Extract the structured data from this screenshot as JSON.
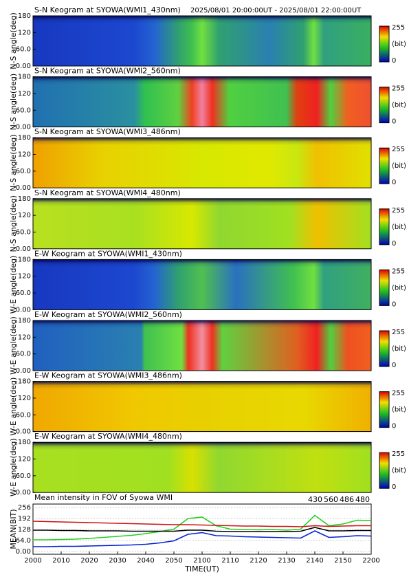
{
  "header": {
    "time_range": "2025/08/01 20:00:00UT - 2025/08/01 22:00:00UT"
  },
  "keograms": [
    {
      "title": "S-N Keogram at SYOWA(WMI1_430nm)",
      "y_label": "N-S angle(deg)"
    },
    {
      "title": "S-N Keogram at SYOWA(WMI2_560nm)",
      "y_label": "N-S angle(deg)"
    },
    {
      "title": "S-N Keogram at SYOWA(WMI3_486nm)",
      "y_label": "N-S angle(deg)"
    },
    {
      "title": "S-N Keogram at SYOWA(WMI4_480nm)",
      "y_label": "N-S angle(deg)"
    },
    {
      "title": "E-W Keogram at SYOWA(WMI1_430nm)",
      "y_label": "W-E angle(deg)"
    },
    {
      "title": "E-W Keogram at SYOWA(WMI2_560nm)",
      "y_label": "W-E angle(deg)"
    },
    {
      "title": "E-W Keogram at SYOWA(WMI3_486nm)",
      "y_label": "W-E angle(deg)"
    },
    {
      "title": "E-W Keogram at SYOWA(WMI4_480nm)",
      "y_label": "W-E angle(deg)"
    }
  ],
  "keogram_ylim": [
    0,
    180
  ],
  "keogram_yticks": [
    {
      "value": 0,
      "label": "0.00"
    },
    {
      "value": 60,
      "label": "60.0"
    },
    120,
    180
  ],
  "colorbar": {
    "max": 255,
    "unit": "(bit)",
    "min": 0
  },
  "chart_data": {
    "type": "line",
    "title": "Mean intensity in FOV of Syowa WMI",
    "y_label": "MEAN(BIT)",
    "x_label": "TIME(UT)",
    "x": [
      2000,
      2005,
      2010,
      2015,
      2020,
      2025,
      2030,
      2035,
      2040,
      2045,
      2050,
      2055,
      2100,
      2105,
      2110,
      2115,
      2120,
      2125,
      2130,
      2135,
      2140,
      2145,
      2150,
      2155,
      2200
    ],
    "series": [
      {
        "name": "430",
        "color": "#0020d0",
        "values": [
          28,
          28,
          30,
          30,
          32,
          34,
          36,
          38,
          42,
          50,
          62,
          100,
          110,
          92,
          90,
          86,
          84,
          82,
          80,
          78,
          120,
          82,
          86,
          92,
          90
        ]
      },
      {
        "name": "560",
        "color": "#20d020",
        "values": [
          68,
          68,
          70,
          72,
          76,
          82,
          88,
          94,
          104,
          116,
          130,
          192,
          200,
          150,
          130,
          128,
          126,
          128,
          124,
          130,
          210,
          150,
          160,
          182,
          180
        ]
      },
      {
        "name": "486",
        "color": "#d01010",
        "values": [
          176,
          174,
          172,
          170,
          168,
          166,
          164,
          162,
          160,
          158,
          156,
          156,
          154,
          152,
          150,
          148,
          148,
          146,
          146,
          144,
          150,
          146,
          148,
          150,
          150
        ]
      },
      {
        "name": "480",
        "color": "#000000",
        "values": [
          124,
          124,
          122,
          122,
          120,
          120,
          120,
          118,
          118,
          118,
          118,
          124,
          124,
          118,
          116,
          116,
          116,
          116,
          116,
          118,
          140,
          120,
          120,
          122,
          122
        ]
      }
    ],
    "xlim": [
      2000,
      2200
    ],
    "xticks": [
      2000,
      2010,
      2020,
      2030,
      2040,
      2050,
      2100,
      2110,
      2120,
      2130,
      2140,
      2150,
      2200
    ],
    "ylim": [
      0,
      256
    ],
    "yticks": [
      {
        "value": 0,
        "label": "0.00"
      },
      {
        "value": 64,
        "label": "64.0"
      },
      128,
      192,
      256
    ]
  }
}
